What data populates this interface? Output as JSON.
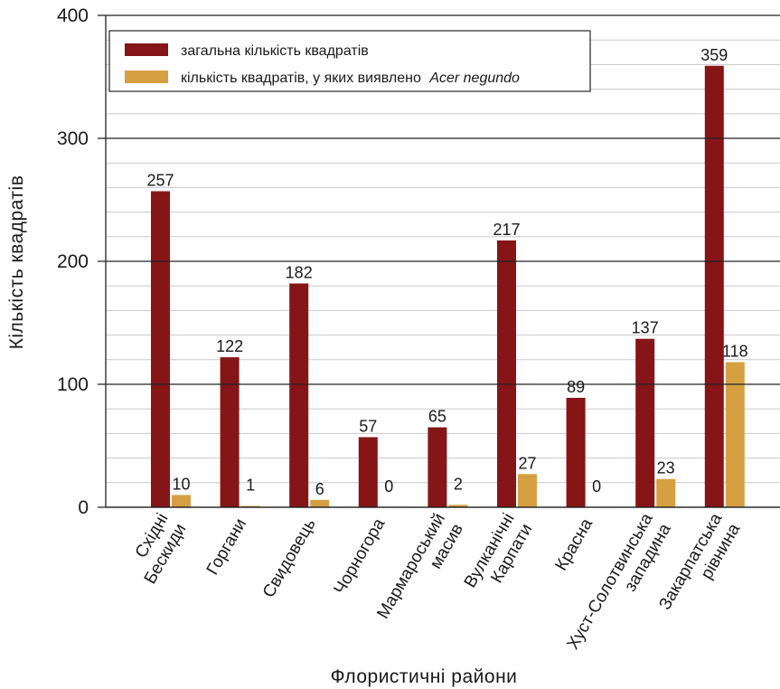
{
  "chart_data": {
    "type": "bar",
    "title": "",
    "xlabel": "Флористичні райони",
    "ylabel": "Кількість квадратів",
    "ylim": [
      0,
      400
    ],
    "yticks": [
      0,
      100,
      200,
      300,
      400
    ],
    "grid": "horizontal",
    "legend_position": "top-left",
    "categories": [
      [
        "Східні",
        "Бескиди"
      ],
      [
        "Горгани"
      ],
      [
        "Свидовець"
      ],
      [
        "Чорногора"
      ],
      [
        "Мармароський",
        "масив"
      ],
      [
        "Вулканічні",
        "Карпати"
      ],
      [
        "Красна"
      ],
      [
        "Хуст-Солотвинська",
        "западина"
      ],
      [
        "Закарпатська",
        "рівнина"
      ]
    ],
    "series": [
      {
        "name": "загальна кількість квадратів",
        "color": "#861518",
        "values": [
          257,
          122,
          182,
          57,
          65,
          217,
          89,
          137,
          359
        ]
      },
      {
        "name": "кількість квадратів, у яких виявлено",
        "name_italic": "Acer negundo",
        "color": "#d6a042",
        "values": [
          10,
          1,
          6,
          0,
          2,
          27,
          0,
          23,
          118
        ]
      }
    ]
  }
}
